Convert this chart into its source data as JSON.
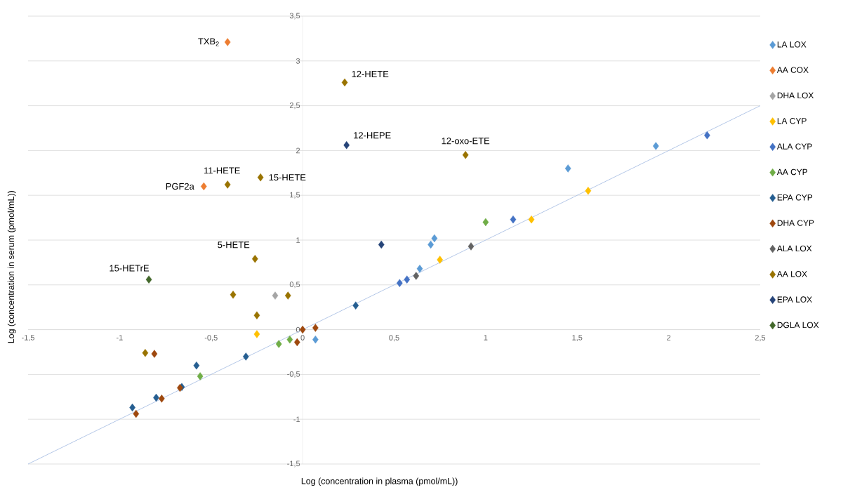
{
  "chart_data": {
    "type": "scatter",
    "xlabel": "Log (concentration in plasma (pmol/mL))",
    "ylabel": "Log (concentration in serum  (pmol/mL))",
    "xlim": [
      -1.5,
      2.5
    ],
    "ylim": [
      -1.5,
      3.5
    ],
    "xticks": [
      {
        "value": -1.5,
        "label": "-1,5"
      },
      -1,
      {
        "value": -0.5,
        "label": "-0,5"
      },
      0,
      {
        "value": 0.5,
        "label": "0,5"
      },
      1,
      {
        "value": 1.5,
        "label": "1,5"
      },
      2,
      {
        "value": 2.5,
        "label": "2,5"
      }
    ],
    "yticks": [
      {
        "value": -1.5,
        "label": "-1,5"
      },
      -1,
      {
        "value": -0.5,
        "label": "-0,5"
      },
      0,
      {
        "value": 0.5,
        "label": "0,5"
      },
      1,
      {
        "value": 1.5,
        "label": "1,5"
      },
      2,
      {
        "value": 2.5,
        "label": "2,5"
      },
      3,
      {
        "value": 3.5,
        "label": "3,5"
      }
    ],
    "grid": "y",
    "legend": "right",
    "marker": "diamond",
    "series": [
      {
        "name": "LA LOX",
        "color": "#5b9bd5",
        "x": [
          0.07,
          0.64,
          0.7,
          0.72,
          1.45,
          1.93
        ],
        "values": [
          -0.11,
          0.68,
          0.95,
          1.02,
          1.8,
          2.05
        ]
      },
      {
        "name": "AA COX",
        "color": "#ed7d31",
        "x": [
          -0.41,
          -0.54
        ],
        "values": [
          3.21,
          1.6
        ]
      },
      {
        "name": "DHA LOX",
        "color": "#a5a5a5",
        "x": [
          -0.15
        ],
        "values": [
          0.38
        ]
      },
      {
        "name": "LA CYP",
        "color": "#ffc000",
        "x": [
          -0.25,
          0.75,
          1.25,
          1.56
        ],
        "values": [
          -0.05,
          0.78,
          1.23,
          1.55
        ]
      },
      {
        "name": "ALA CYP",
        "color": "#4472c4",
        "x": [
          0.53,
          0.57,
          1.15,
          2.21
        ],
        "values": [
          0.52,
          0.56,
          1.23,
          2.17
        ]
      },
      {
        "name": "AA CYP",
        "color": "#70ad47",
        "x": [
          -0.13,
          -0.07,
          -0.56,
          1.0
        ],
        "values": [
          -0.16,
          -0.11,
          -0.52,
          1.2
        ]
      },
      {
        "name": "EPA CYP",
        "color": "#255e91",
        "x": [
          -0.93,
          -0.8,
          -0.66,
          -0.58,
          -0.31,
          0.29
        ],
        "values": [
          -0.87,
          -0.76,
          -0.64,
          -0.4,
          -0.3,
          0.27
        ]
      },
      {
        "name": "DHA CYP",
        "color": "#9e480e",
        "x": [
          -0.91,
          -0.77,
          -0.67,
          0.0,
          0.07,
          -0.03,
          -0.81
        ],
        "values": [
          -0.94,
          -0.77,
          -0.65,
          0.0,
          0.02,
          -0.14,
          -0.27
        ]
      },
      {
        "name": "ALA LOX",
        "color": "#636363",
        "x": [
          0.62,
          0.92
        ],
        "values": [
          0.6,
          0.93
        ]
      },
      {
        "name": "AA LOX",
        "color": "#997300",
        "x": [
          0.23,
          0.89,
          -0.41,
          -0.23,
          -0.26,
          -0.38,
          -0.25,
          -0.08,
          -0.86
        ],
        "values": [
          2.76,
          1.95,
          1.62,
          1.7,
          0.79,
          0.39,
          0.16,
          0.38,
          -0.26
        ]
      },
      {
        "name": "EPA LOX",
        "color": "#264478",
        "x": [
          0.24,
          0.43
        ],
        "values": [
          2.06,
          0.95
        ]
      },
      {
        "name": "DGLA LOX",
        "color": "#43682b",
        "x": [
          -0.84
        ],
        "values": [
          0.56
        ]
      },
      {
        "type": "line",
        "marker": "none",
        "color": "#b4c7e7",
        "x": [
          -1.5,
          2.5
        ],
        "values": [
          -1.5,
          2.5
        ]
      }
    ],
    "annotations": [
      {
        "text": "TXB$_{2}$",
        "x": -0.41,
        "y": 3.21
      },
      {
        "text": "12-HETE",
        "x": 0.23,
        "y": 2.76
      },
      {
        "text": "12-HEPE",
        "x": 0.24,
        "y": 2.06
      },
      {
        "text": "12-oxo-ETE",
        "x": 0.89,
        "y": 1.95
      },
      {
        "text": "11-HETE",
        "x": -0.41,
        "y": 1.62
      },
      {
        "text": "PGF2a",
        "x": -0.54,
        "y": 1.6
      },
      {
        "text": "15-HETE",
        "x": -0.23,
        "y": 1.7
      },
      {
        "text": "5-HETE",
        "x": -0.26,
        "y": 0.79
      },
      {
        "text": "15-HETrE",
        "x": -0.84,
        "y": 0.56
      }
    ]
  }
}
